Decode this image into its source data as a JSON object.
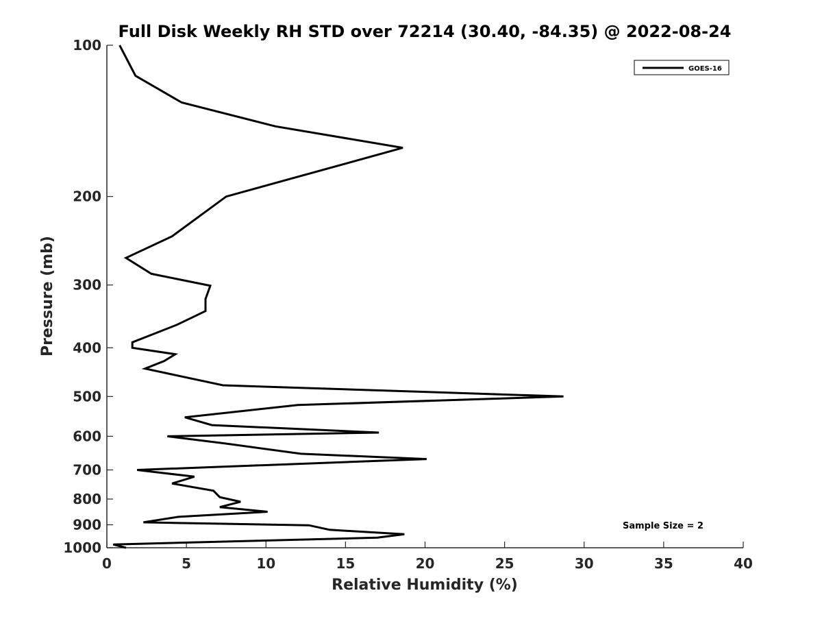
{
  "chart_data": {
    "type": "line",
    "title": "Full Disk Weekly RH STD over 72214 (30.40, -84.35) @ 2022-08-24",
    "xlabel": "Relative Humidity (%)",
    "ylabel": "Pressure (mb)",
    "xlim": [
      0,
      40
    ],
    "ylim": [
      100,
      1000
    ],
    "y_scale": "log",
    "y_reversed": true,
    "x_ticks": [
      0,
      5,
      10,
      15,
      20,
      25,
      30,
      35,
      40
    ],
    "y_ticks": [
      100,
      200,
      300,
      400,
      500,
      600,
      700,
      800,
      900,
      1000
    ],
    "legend_position": "top-right",
    "grid": false,
    "annotation": "Sample Size = 2",
    "series": [
      {
        "name": "GOES-16",
        "color": "#000000",
        "points": [
          [
            0.8,
            100
          ],
          [
            1.8,
            115
          ],
          [
            4.7,
            130
          ],
          [
            10.6,
            145
          ],
          [
            18.6,
            160
          ],
          [
            7.5,
            200
          ],
          [
            4.1,
            240
          ],
          [
            1.2,
            265
          ],
          [
            2.8,
            285
          ],
          [
            6.5,
            301
          ],
          [
            6.2,
            320
          ],
          [
            6.2,
            338
          ],
          [
            4.4,
            360
          ],
          [
            1.6,
            390
          ],
          [
            1.6,
            400
          ],
          [
            4.3,
            412
          ],
          [
            3.6,
            425
          ],
          [
            2.4,
            440
          ],
          [
            7.3,
            475
          ],
          [
            28.7,
            500
          ],
          [
            12.0,
            520
          ],
          [
            4.9,
            550
          ],
          [
            6.6,
            570
          ],
          [
            17.1,
            590
          ],
          [
            3.8,
            600
          ],
          [
            7.4,
            620
          ],
          [
            12.2,
            650
          ],
          [
            20.1,
            666
          ],
          [
            1.9,
            700
          ],
          [
            5.5,
            722
          ],
          [
            4.1,
            745
          ],
          [
            6.7,
            770
          ],
          [
            7.1,
            793
          ],
          [
            8.4,
            810
          ],
          [
            7.1,
            830
          ],
          [
            10.1,
            848
          ],
          [
            4.5,
            868
          ],
          [
            2.3,
            890
          ],
          [
            12.7,
            902
          ],
          [
            14.0,
            921
          ],
          [
            18.7,
            940
          ],
          [
            17.0,
            955
          ],
          [
            0.4,
            985
          ],
          [
            1.2,
            1000
          ]
        ]
      }
    ]
  }
}
